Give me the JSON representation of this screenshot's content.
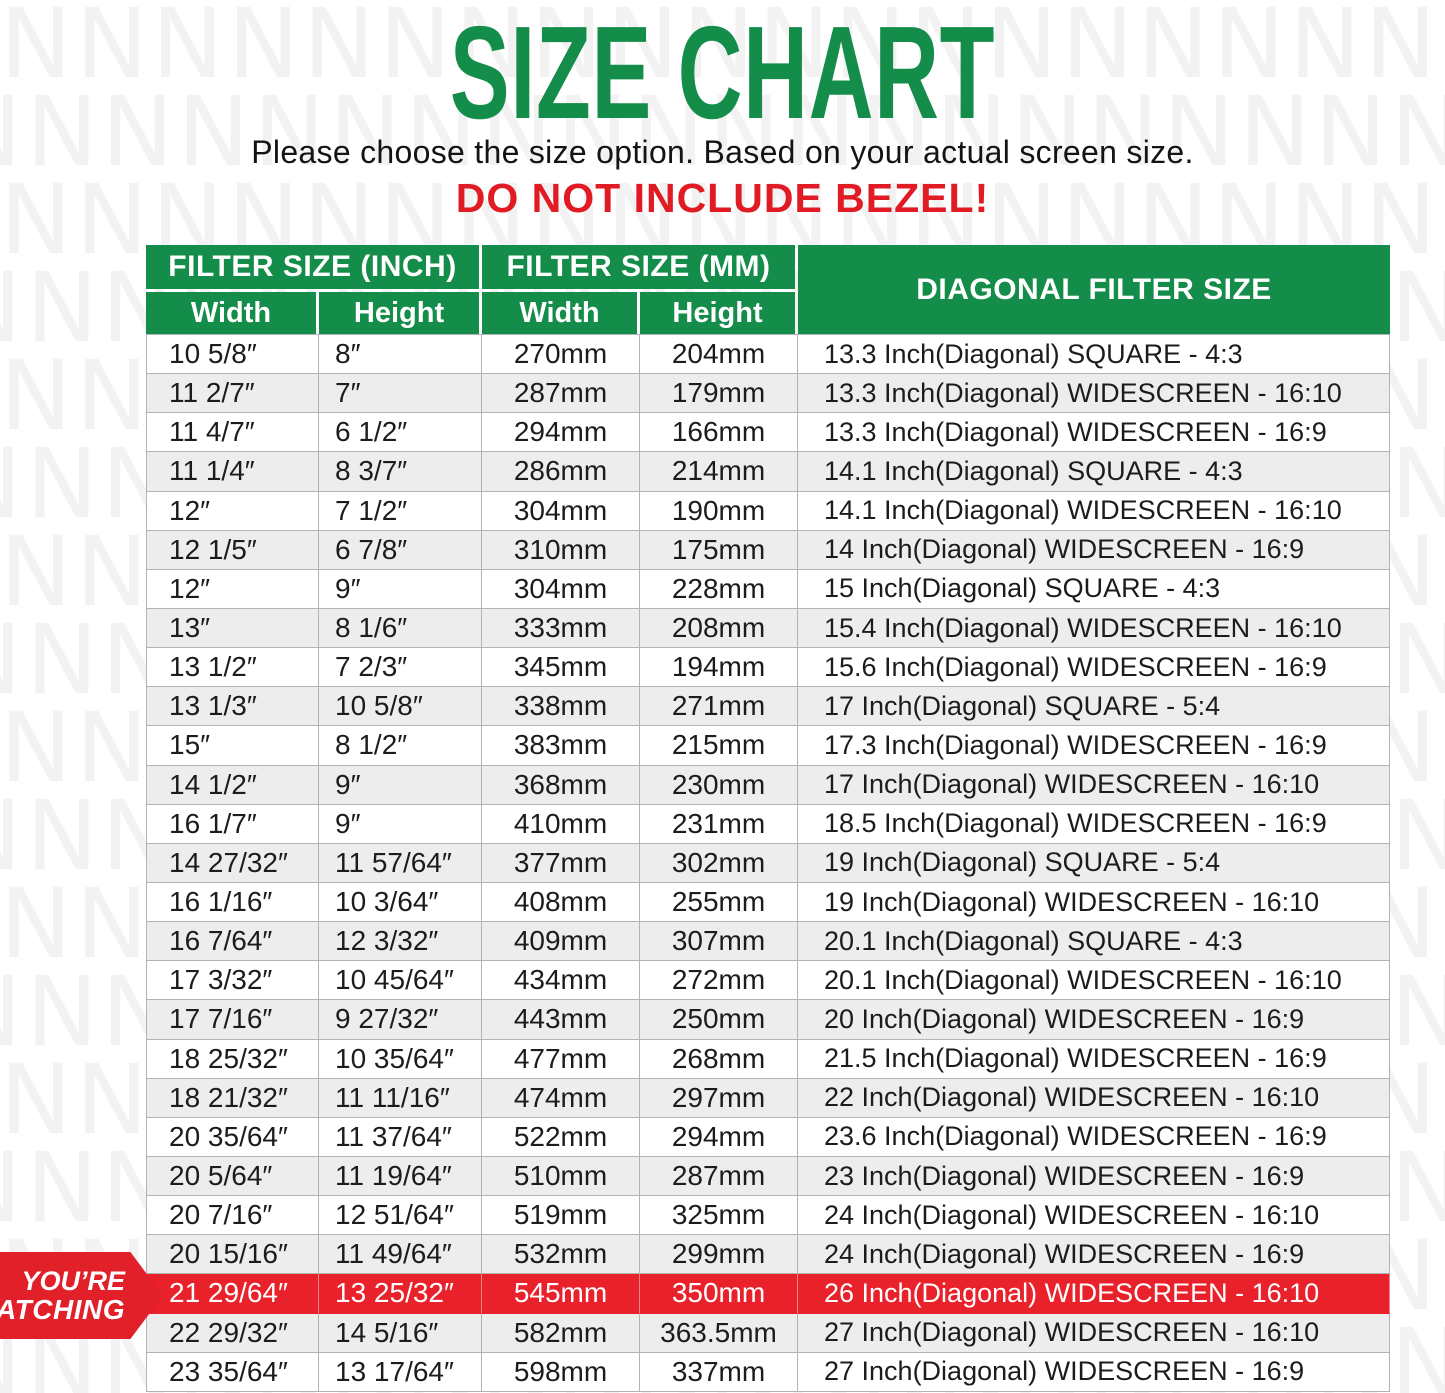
{
  "header": {
    "title": "SIZE CHART",
    "subtitle": "Please choose the size option. Based on your actual screen size.",
    "warning": "DO NOT INCLUDE BEZEL!"
  },
  "table": {
    "groups": [
      "FILTER SIZE (INCH)",
      "FILTER SIZE (MM)",
      "DIAGONAL FILTER SIZE"
    ],
    "sub_headers": [
      "Width",
      "Height",
      "Width",
      "Height"
    ],
    "highlight_index": 24,
    "rows": [
      [
        "10 5/8″",
        "8″",
        "270mm",
        "204mm",
        "13.3 Inch(Diagonal) SQUARE - 4:3"
      ],
      [
        "11 2/7″",
        "7″",
        "287mm",
        "179mm",
        "13.3 Inch(Diagonal) WIDESCREEN - 16:10"
      ],
      [
        "11 4/7″",
        "6 1/2″",
        "294mm",
        "166mm",
        "13.3 Inch(Diagonal) WIDESCREEN - 16:9"
      ],
      [
        "11 1/4″",
        "8 3/7″",
        "286mm",
        "214mm",
        "14.1 Inch(Diagonal) SQUARE - 4:3"
      ],
      [
        "12″",
        "7 1/2″",
        "304mm",
        "190mm",
        "14.1 Inch(Diagonal) WIDESCREEN - 16:10"
      ],
      [
        "12 1/5″",
        "6 7/8″",
        "310mm",
        "175mm",
        "14 Inch(Diagonal) WIDESCREEN - 16:9"
      ],
      [
        "12″",
        "9″",
        "304mm",
        "228mm",
        "15 Inch(Diagonal) SQUARE - 4:3"
      ],
      [
        "13″",
        "8 1/6″",
        "333mm",
        "208mm",
        "15.4 Inch(Diagonal) WIDESCREEN - 16:10"
      ],
      [
        "13 1/2″",
        "7 2/3″",
        "345mm",
        "194mm",
        "15.6 Inch(Diagonal) WIDESCREEN - 16:9"
      ],
      [
        "13 1/3″",
        "10 5/8″",
        "338mm",
        "271mm",
        "17 Inch(Diagonal) SQUARE - 5:4"
      ],
      [
        "15″",
        "8 1/2″",
        "383mm",
        "215mm",
        "17.3 Inch(Diagonal) WIDESCREEN - 16:9"
      ],
      [
        "14 1/2″",
        "9″",
        "368mm",
        "230mm",
        "17 Inch(Diagonal) WIDESCREEN - 16:10"
      ],
      [
        "16 1/7″",
        "9″",
        "410mm",
        "231mm",
        "18.5 Inch(Diagonal) WIDESCREEN - 16:9"
      ],
      [
        "14 27/32″",
        "11 57/64″",
        "377mm",
        "302mm",
        "19 Inch(Diagonal) SQUARE - 5:4"
      ],
      [
        "16 1/16″",
        "10 3/64″",
        "408mm",
        "255mm",
        "19 Inch(Diagonal) WIDESCREEN - 16:10"
      ],
      [
        "16 7/64″",
        "12 3/32″",
        "409mm",
        "307mm",
        "20.1 Inch(Diagonal) SQUARE - 4:3"
      ],
      [
        "17 3/32″",
        "10 45/64″",
        "434mm",
        "272mm",
        "20.1 Inch(Diagonal) WIDESCREEN - 16:10"
      ],
      [
        "17 7/16″",
        "9 27/32″",
        "443mm",
        "250mm",
        "20 Inch(Diagonal) WIDESCREEN - 16:9"
      ],
      [
        "18 25/32″",
        "10 35/64″",
        "477mm",
        "268mm",
        "21.5 Inch(Diagonal) WIDESCREEN - 16:9"
      ],
      [
        "18 21/32″",
        "11 11/16″",
        "474mm",
        "297mm",
        "22 Inch(Diagonal) WIDESCREEN - 16:10"
      ],
      [
        "20 35/64″",
        "11 37/64″",
        "522mm",
        "294mm",
        "23.6 Inch(Diagonal) WIDESCREEN - 16:9"
      ],
      [
        "20 5/64″",
        "11 19/64″",
        "510mm",
        "287mm",
        "23 Inch(Diagonal) WIDESCREEN - 16:9"
      ],
      [
        "20 7/16″",
        "12 51/64″",
        "519mm",
        "325mm",
        "24 Inch(Diagonal) WIDESCREEN - 16:10"
      ],
      [
        "20 15/16″",
        "11 49/64″",
        "532mm",
        "299mm",
        "24 Inch(Diagonal) WIDESCREEN - 16:9"
      ],
      [
        "21 29/64″",
        "13 25/32″",
        "545mm",
        "350mm",
        "26 Inch(Diagonal) WIDESCREEN - 16:10"
      ],
      [
        "22 29/32″",
        "14 5/16″",
        "582mm",
        "363.5mm",
        "27 Inch(Diagonal) WIDESCREEN - 16:10"
      ],
      [
        "23 35/64″",
        "13 17/64″",
        "598mm",
        "337mm",
        "27 Inch(Diagonal) WIDESCREEN - 16:9"
      ]
    ]
  },
  "badge": {
    "line1": "YOU’RE",
    "line2": "WATCHING"
  },
  "colors": {
    "green": "#148C4A",
    "highlight_red": "#E8212B",
    "warning_red": "#E01B23",
    "badge_red": "#E1202A",
    "row_alt": "#EDEDED",
    "line": "#B3B3B3"
  }
}
